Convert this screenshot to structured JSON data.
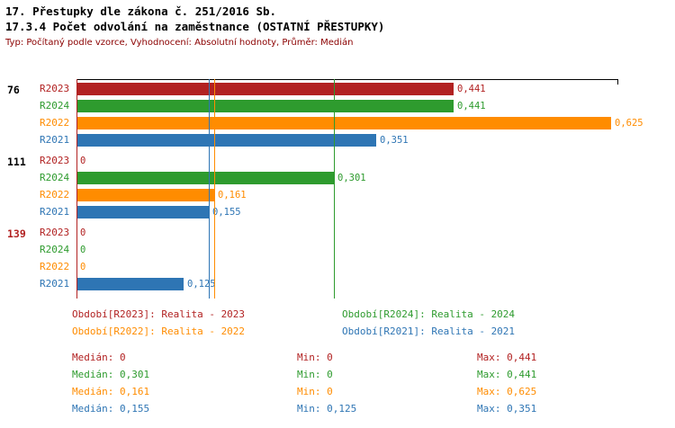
{
  "header": {
    "title": "17. Přestupky dle zákona č. 251/2016 Sb.",
    "subtitle": "17.3.4 Počet odvolání na zaměstnance (OSTATNÍ PŘESTUPKY)",
    "meta": "Typ: Počítaný podle vzorce, Vyhodnocení: Absolutní hodnoty, Průměr: Medián"
  },
  "colors": {
    "R2023": "#b22222",
    "R2024": "#2e9b2e",
    "R2022": "#ff8c00",
    "R2021": "#2e75b4",
    "meta_text": "#8b0000",
    "axis": "#000000",
    "background": "#ffffff"
  },
  "chart_data": {
    "type": "bar",
    "orientation": "horizontal",
    "xlim": [
      0,
      0.633
    ],
    "decimal_style": "comma",
    "grid": false,
    "series_colors": {
      "R2023": "#b22222",
      "R2024": "#2e9b2e",
      "R2022": "#ff8c00",
      "R2021": "#2e75b4"
    },
    "groups": [
      {
        "label": "76",
        "label_color": "#000000",
        "bars": [
          {
            "series": "R2023",
            "value": 0.441,
            "display": "0,441"
          },
          {
            "series": "R2024",
            "value": 0.441,
            "display": "0,441"
          },
          {
            "series": "R2022",
            "value": 0.625,
            "display": "0,625"
          },
          {
            "series": "R2021",
            "value": 0.351,
            "display": "0,351"
          }
        ]
      },
      {
        "label": "111",
        "label_color": "#000000",
        "bars": [
          {
            "series": "R2023",
            "value": 0,
            "display": "0"
          },
          {
            "series": "R2024",
            "value": 0.301,
            "display": "0,301"
          },
          {
            "series": "R2022",
            "value": 0.161,
            "display": "0,161"
          },
          {
            "series": "R2021",
            "value": 0.155,
            "display": "0,155"
          }
        ]
      },
      {
        "label": "139",
        "label_color": "#b22222",
        "bars": [
          {
            "series": "R2023",
            "value": 0,
            "display": "0"
          },
          {
            "series": "R2024",
            "value": 0,
            "display": "0"
          },
          {
            "series": "R2022",
            "value": 0,
            "display": "0"
          },
          {
            "series": "R2021",
            "value": 0.125,
            "display": "0,125"
          }
        ]
      }
    ],
    "median_lines": [
      {
        "series": "R2023",
        "value": 0,
        "color": "#b22222"
      },
      {
        "series": "R2024",
        "value": 0.301,
        "color": "#2e9b2e"
      },
      {
        "series": "R2022",
        "value": 0.161,
        "color": "#ff8c00"
      },
      {
        "series": "R2021",
        "value": 0.155,
        "color": "#2e75b4"
      }
    ]
  },
  "legend": {
    "items": [
      {
        "series": "R2023",
        "label": "Období[R2023]: Realita - 2023",
        "color": "#b22222"
      },
      {
        "series": "R2024",
        "label": "Období[R2024]: Realita - 2024",
        "color": "#2e9b2e"
      },
      {
        "series": "R2022",
        "label": "Období[R2022]: Realita - 2022",
        "color": "#ff8c00"
      },
      {
        "series": "R2021",
        "label": "Období[R2021]: Realita - 2021",
        "color": "#2e75b4"
      }
    ]
  },
  "stats": {
    "labels": {
      "median": "Medián",
      "min": "Min",
      "max": "Max"
    },
    "rows": [
      {
        "series": "R2023",
        "color": "#b22222",
        "median": "0",
        "min": "0",
        "max": "0,441"
      },
      {
        "series": "R2024",
        "color": "#2e9b2e",
        "median": "0,301",
        "min": "0",
        "max": "0,441"
      },
      {
        "series": "R2022",
        "color": "#ff8c00",
        "median": "0,161",
        "min": "0",
        "max": "0,625"
      },
      {
        "series": "R2021",
        "color": "#2e75b4",
        "median": "0,155",
        "min": "0,125",
        "max": "0,351"
      }
    ]
  }
}
